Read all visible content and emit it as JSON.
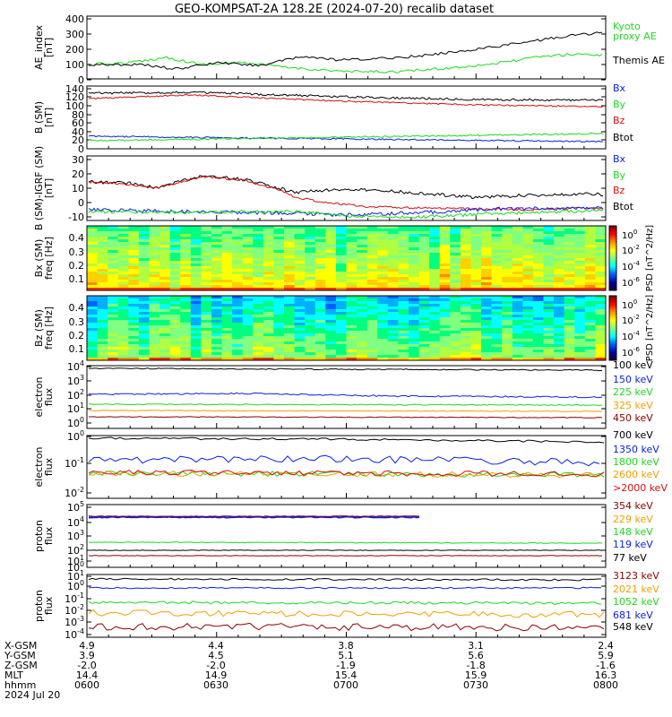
{
  "title": "GEO-KOMPSAT-2A 128.2E (2024-07-20) recalib dataset",
  "colors": {
    "black": "#000000",
    "blue": "#0b22e0",
    "green": "#1ed81e",
    "red": "#d41010",
    "orange": "#f0a000",
    "darkred": "#8b0000"
  },
  "panels": [
    {
      "ylabel": [
        "AE_index",
        "[nT]"
      ],
      "yticks": [
        "400",
        "300",
        "200",
        "100",
        "0"
      ],
      "legend": [
        {
          "text": "Kyoto",
          "color": "#1ed81e"
        },
        {
          "text": "proxy AE",
          "color": "#1ed81e"
        },
        {
          "text": "Themis AE",
          "color": "#000000"
        }
      ]
    },
    {
      "ylabel": [
        "B (SM)",
        "[nT]"
      ],
      "yticks": [
        "140",
        "120",
        "100",
        "80",
        "60",
        "40",
        "20",
        "0"
      ],
      "legend": [
        {
          "text": "Bx",
          "color": "#0b22e0"
        },
        {
          "text": "By",
          "color": "#1ed81e"
        },
        {
          "text": "Bz",
          "color": "#d41010"
        },
        {
          "text": "Btot",
          "color": "#000000"
        }
      ]
    },
    {
      "ylabel": [
        "B (SM)-IGRF (SM)",
        "[nT]"
      ],
      "yticks": [
        "30",
        "20",
        "10",
        "0",
        "-10"
      ],
      "legend": [
        {
          "text": "Bx",
          "color": "#0b22e0"
        },
        {
          "text": "By",
          "color": "#1ed81e"
        },
        {
          "text": "Bz",
          "color": "#d41010"
        },
        {
          "text": "Btot",
          "color": "#000000"
        }
      ]
    },
    {
      "ylabel": [
        "Bx (SM)",
        "freq [Hz]"
      ],
      "yticks": [
        "0.4",
        "0.3",
        "0.2",
        "0.1"
      ],
      "colorbar": {
        "ticks": [
          "10^0",
          "10^-2",
          "10^-4",
          "10^-6"
        ],
        "label": "PSD [nT^2/Hz]"
      }
    },
    {
      "ylabel": [
        "Bz (SM)",
        "freq [Hz]"
      ],
      "yticks": [
        "0.4",
        "0.3",
        "0.2",
        "0.1"
      ],
      "colorbar": {
        "ticks": [
          "10^0",
          "10^-2",
          "10^-4",
          "10^-6"
        ],
        "label": "PSD [nT^2/Hz]"
      }
    },
    {
      "ylabel": [
        "electron",
        "flux"
      ],
      "yticks": [
        "10^4",
        "10^3",
        "10^2",
        "10^1",
        "10^0"
      ],
      "legend": [
        {
          "text": "100 keV",
          "color": "#000000"
        },
        {
          "text": "150 keV",
          "color": "#0b22e0"
        },
        {
          "text": "225 keV",
          "color": "#1ed81e"
        },
        {
          "text": "325 keV",
          "color": "#f0a000"
        },
        {
          "text": "450 keV",
          "color": "#8b0000"
        }
      ]
    },
    {
      "ylabel": [
        "electron",
        "flux"
      ],
      "yticks": [
        "10^0",
        "10^-1",
        "10^-2"
      ],
      "legend": [
        {
          "text": "700 keV",
          "color": "#000000"
        },
        {
          "text": "1350 keV",
          "color": "#0b22e0"
        },
        {
          "text": "1800 keV",
          "color": "#1ed81e"
        },
        {
          "text": "2600 keV",
          "color": "#f0a000"
        },
        {
          "text": ">2000 keV",
          "color": "#d41010"
        }
      ]
    },
    {
      "ylabel": [
        "proton",
        "flux"
      ],
      "yticks": [
        "10^5",
        "10^4",
        "10^3",
        "10^2",
        "10^1",
        "10^0"
      ],
      "legend": [
        {
          "text": "354 keV",
          "color": "#8b0000"
        },
        {
          "text": "229 keV",
          "color": "#f0a000"
        },
        {
          "text": "148 keV",
          "color": "#1ed81e"
        },
        {
          "text": "119 keV",
          "color": "#0b22e0"
        },
        {
          "text": "77 keV",
          "color": "#000000"
        }
      ]
    },
    {
      "ylabel": [
        "proton",
        "flux"
      ],
      "yticks": [
        "10^1",
        "10^0",
        "10^-1",
        "10^-2",
        "10^-3",
        "10^-4"
      ],
      "legend": [
        {
          "text": "3123 keV",
          "color": "#8b0000"
        },
        {
          "text": "2021 keV",
          "color": "#f0a000"
        },
        {
          "text": "1052 keV",
          "color": "#1ed81e"
        },
        {
          "text": "681 keV",
          "color": "#0b22e0"
        },
        {
          "text": "548 keV",
          "color": "#000000"
        }
      ]
    }
  ],
  "footer": {
    "row_labels": [
      "X-GSM",
      "Y-GSM",
      "Z-GSM",
      "MLT",
      "hhmm",
      "2024 Jul 20"
    ],
    "columns": [
      [
        "4.9",
        "3.9",
        "-2.0",
        "14.4",
        "0600"
      ],
      [
        "4.4",
        "4.5",
        "-2.0",
        "14.9",
        "0630"
      ],
      [
        "3.8",
        "5.1",
        "-1.9",
        "15.4",
        "0700"
      ],
      [
        "3.1",
        "5.6",
        "-1.8",
        "15.9",
        "0730"
      ],
      [
        "2.4",
        "5.9",
        "-1.6",
        "16.3",
        "0800"
      ]
    ]
  },
  "chart_data": [
    {
      "type": "line",
      "title": "GEO-KOMPSAT-2A 128.2E (2024-07-20) recalib dataset",
      "ylabel": "AE_index [nT]",
      "ylim": [
        0,
        400
      ],
      "x": [
        "06:00",
        "06:15",
        "06:30",
        "06:45",
        "07:00",
        "07:15",
        "07:30",
        "07:45",
        "08:00"
      ],
      "series": [
        {
          "name": "Kyoto proxy AE",
          "values": [
            100,
            160,
            140,
            90,
            75,
            100,
            150,
            170,
            210
          ]
        },
        {
          "name": "Themis AE",
          "values": [
            100,
            90,
            110,
            170,
            140,
            160,
            190,
            230,
            310
          ]
        }
      ]
    },
    {
      "type": "line",
      "ylabel": "B (SM) [nT]",
      "ylim": [
        0,
        140
      ],
      "x": [
        "06:00",
        "06:15",
        "06:30",
        "06:45",
        "07:00",
        "07:15",
        "07:30",
        "07:45",
        "08:00"
      ],
      "series": [
        {
          "name": "Btot",
          "values": [
            122,
            124,
            122,
            121,
            117,
            114,
            110,
            107,
            104
          ]
        },
        {
          "name": "Bz",
          "values": [
            116,
            120,
            118,
            115,
            109,
            104,
            100,
            98,
            96
          ]
        },
        {
          "name": "Bx",
          "values": [
            35,
            34,
            33,
            31,
            29,
            27,
            25,
            23,
            21
          ]
        },
        {
          "name": "By",
          "values": [
            26,
            28,
            30,
            32,
            33,
            34,
            35,
            37,
            39
          ]
        }
      ]
    },
    {
      "type": "line",
      "ylabel": "B (SM)-IGRF (SM) [nT]",
      "ylim": [
        -12,
        30
      ],
      "x": [
        "06:00",
        "06:15",
        "06:30",
        "06:45",
        "07:00",
        "07:15",
        "07:30",
        "07:45",
        "08:00"
      ],
      "series": [
        {
          "name": "Btot",
          "values": [
            14,
            12,
            19,
            12,
            7,
            8,
            5,
            6,
            5
          ]
        },
        {
          "name": "Bz",
          "values": [
            14,
            11,
            17,
            10,
            0,
            -2,
            -3,
            -4,
            -3
          ]
        },
        {
          "name": "Bx",
          "values": [
            -3,
            -5,
            -5,
            -3,
            -8,
            -7,
            -5,
            -6,
            -5
          ]
        },
        {
          "name": "By",
          "values": [
            -4,
            -5,
            -6,
            -5,
            -7,
            -9,
            -8,
            -7,
            -6
          ]
        }
      ]
    },
    {
      "type": "heatmap",
      "ylabel": "Bx (SM) freq [Hz]",
      "ylim": [
        0,
        0.5
      ],
      "colorbar_label": "PSD [nT^2/Hz]"
    },
    {
      "type": "heatmap",
      "ylabel": "Bz (SM) freq [Hz]",
      "ylim": [
        0,
        0.5
      ],
      "colorbar_label": "PSD [nT^2/Hz]"
    },
    {
      "type": "line",
      "ylabel": "electron flux",
      "yscale": "log",
      "ylim": [
        1,
        10000
      ],
      "series": [
        {
          "name": "100 keV",
          "values": [
            7000,
            7000,
            7000,
            6800,
            6500
          ]
        },
        {
          "name": "150 keV",
          "values": [
            150,
            160,
            140,
            130,
            120
          ]
        },
        {
          "name": "225 keV",
          "values": [
            40,
            40,
            38,
            36,
            35
          ]
        },
        {
          "name": "325 keV",
          "values": [
            15,
            15,
            14,
            14,
            13
          ]
        },
        {
          "name": "450 keV",
          "values": [
            5,
            5,
            5,
            5,
            5
          ]
        }
      ]
    },
    {
      "type": "line",
      "ylabel": "electron flux",
      "yscale": "log",
      "ylim": [
        0.01,
        1
      ],
      "series": [
        {
          "name": "700 keV",
          "values": [
            0.7,
            0.65,
            0.7,
            0.65,
            0.6
          ]
        },
        {
          "name": "1350 keV",
          "values": [
            0.15,
            0.16,
            0.15,
            0.14,
            0.13
          ]
        },
        {
          "name": "1800 keV",
          "values": [
            0.07,
            0.07,
            0.07,
            0.07,
            0.06
          ]
        },
        {
          "name": "2600 keV",
          "values": [
            0.07,
            0.07,
            0.07,
            0.07,
            0.06
          ]
        },
        {
          "name": ">2000 keV",
          "values": [
            0.07,
            0.06,
            0.07,
            0.06,
            0.06
          ]
        }
      ]
    },
    {
      "type": "line",
      "ylabel": "proton flux",
      "yscale": "log",
      "ylim": [
        1,
        100000
      ],
      "series": [
        {
          "name": "354 keV",
          "values": [
            10000,
            10000,
            10000,
            null,
            null
          ]
        },
        {
          "name": "229 keV",
          "values": [
            10000,
            10000,
            10000,
            null,
            null
          ]
        },
        {
          "name": "148 keV",
          "values": [
            150,
            150,
            150,
            150,
            150
          ]
        },
        {
          "name": "119 keV",
          "values": [
            40,
            40,
            40,
            40,
            40
          ]
        },
        {
          "name": "77 keV",
          "values": [
            12,
            12,
            12,
            12,
            12
          ]
        }
      ]
    },
    {
      "type": "line",
      "ylabel": "proton flux",
      "yscale": "log",
      "ylim": [
        0.0001,
        10
      ],
      "series": [
        {
          "name": "548 keV",
          "values": [
            4,
            4,
            4,
            4,
            4
          ]
        },
        {
          "name": "681 keV",
          "values": [
            1.5,
            1.5,
            1.5,
            1.5,
            1.5
          ]
        },
        {
          "name": "1052 keV",
          "values": [
            0.1,
            0.1,
            0.1,
            0.1,
            0.1
          ]
        },
        {
          "name": "2021 keV",
          "values": [
            0.006,
            0.006,
            0.005,
            0.005,
            0.005
          ]
        },
        {
          "name": "3123 keV",
          "values": [
            0.001,
            0.0012,
            0.001,
            0.001,
            0.001
          ]
        }
      ]
    }
  ]
}
